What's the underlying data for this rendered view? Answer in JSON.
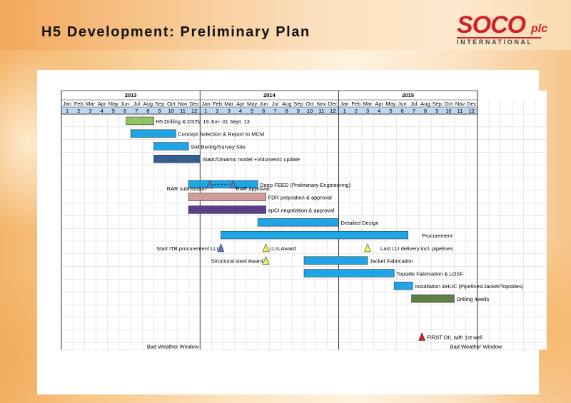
{
  "slide": {
    "title": "H5 Development: Preliminary Plan"
  },
  "logo": {
    "brand": "SOCO",
    "suffix": "plc",
    "subtitle": "INTERNATIONAL"
  },
  "colors": {
    "blue": "#1ea5e6",
    "green": "#8ec564",
    "navy": "#335c8f",
    "pink": "#d39b9a",
    "purple": "#5b3f8c",
    "darkgreen": "#5f8048",
    "milestone_blue": "#4f7fbf",
    "milestone_yellow": "#f2f25a",
    "milestone_red": "#d21f26",
    "header_blue": "#bfd6ef"
  },
  "timeline": {
    "years": [
      "2013",
      "2014",
      "2015"
    ],
    "months": [
      "Jan",
      "Feb",
      "Mar",
      "Apr",
      "May",
      "Jun",
      "Jul",
      "Aug",
      "Sep",
      "Oct",
      "Nov",
      "Dec"
    ],
    "numbers": [
      "1",
      "2",
      "3",
      "4",
      "5",
      "6",
      "7",
      "8",
      "9",
      "10",
      "11",
      "12"
    ]
  },
  "tasks": [
    {
      "label": "H5 Drilling & DSTs: 19 Jun- 01 Sept. 13",
      "start": 5.6,
      "end": 8.0,
      "color": "green"
    },
    {
      "label": "Concept Selection & Report to MCM",
      "start": 6.0,
      "end": 9.9,
      "color": "blue"
    },
    {
      "label": "Soil Boring/Survey Site",
      "start": 8.0,
      "end": 11.0,
      "color": "blue"
    },
    {
      "label": "Static/Dinamic model +Volumetric update",
      "start": 8.0,
      "end": 12.0,
      "color": "navy"
    },
    {
      "label": "Deep FEED (Preliminary Engineering)",
      "start": 11.0,
      "end": 17.0,
      "color": "blue"
    },
    {
      "label": "FDR prepration & approval",
      "start": 11.0,
      "end": 17.7,
      "color": "pink"
    },
    {
      "label": "epCI negotiation & approval",
      "start": 11.0,
      "end": 17.7,
      "color": "purple"
    },
    {
      "label": "Detailed Design",
      "start": 17.0,
      "end": 24.0,
      "color": "blue"
    },
    {
      "label": "Procurement",
      "start": 13.8,
      "end": 30.0,
      "color": "blue"
    },
    {
      "label": "Jacket Fabrication",
      "start": 21.0,
      "end": 26.5,
      "color": "blue"
    },
    {
      "label": "Topside Fabrication & LOSF",
      "start": 21.0,
      "end": 28.8,
      "color": "blue"
    },
    {
      "label": "Installation &HUC (Pipelines/Jacket/Topsides)",
      "start": 28.8,
      "end": 30.4,
      "color": "blue"
    },
    {
      "label": "Drilling 4wells",
      "start": 30.3,
      "end": 34.0,
      "color": "darkgreen"
    }
  ],
  "milestones": [
    {
      "label": "RAR submission",
      "time": 12.85,
      "row": 5,
      "color": "milestone_blue"
    },
    {
      "label": "RAR approval",
      "time": 14.85,
      "row": 5,
      "color": "milestone_blue"
    },
    {
      "label": "Start ITB procurement LLI",
      "time": 13.8,
      "row": 10,
      "color": "milestone_blue"
    },
    {
      "label": "LLIs Award",
      "time": 17.7,
      "row": 10,
      "color": "milestone_yellow"
    },
    {
      "label": "Last LLI delivery incl. pipelines",
      "time": 26.5,
      "row": 10,
      "color": "milestone_yellow"
    },
    {
      "label": "Structural steel Award",
      "time": 17.7,
      "row": 11,
      "color": "milestone_yellow"
    },
    {
      "label": "FIRST OIL with 1st well",
      "time": 31.2,
      "row": 17,
      "color": "milestone_red"
    }
  ],
  "footer": {
    "weather_left": "Bad Weather Window",
    "weather_right": "Bad Weather Window"
  }
}
